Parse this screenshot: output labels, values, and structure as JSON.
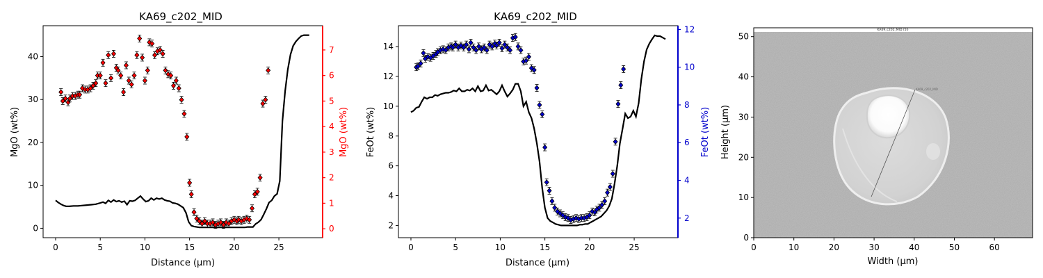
{
  "chart_data": [
    {
      "type": "line",
      "title": "KA69_c202_MID",
      "xlabel": "Distance (µm)",
      "ylabel": "MgO (wt%)",
      "ylabel_right": "MgO (wt%)",
      "xlim": [
        -1.4,
        29.9
      ],
      "ylim": [
        -2.2,
        47.2
      ],
      "ylim_right": [
        -0.35,
        7.95
      ],
      "xticks": [
        "0",
        "5",
        "10",
        "15",
        "20",
        "25"
      ],
      "yticks": [
        "0",
        "10",
        "20",
        "30",
        "40"
      ],
      "yticks_right": [
        "0",
        "1",
        "2",
        "3",
        "4",
        "5",
        "6",
        "7"
      ],
      "grid": false,
      "colors": {
        "line": "#000000",
        "points": "#ff0000",
        "right_axis": "#ff0000"
      },
      "series": [
        {
          "kind": "line",
          "x": [
            0,
            0.3,
            0.6,
            0.9,
            1.2,
            1.5,
            2.0,
            2.5,
            3.0,
            3.5,
            4.0,
            4.5,
            5.0,
            5.3,
            5.6,
            5.9,
            6.2,
            6.5,
            6.8,
            7.1,
            7.4,
            7.7,
            8.0,
            8.3,
            8.6,
            8.9,
            9.2,
            9.5,
            9.8,
            10.1,
            10.4,
            10.7,
            11.0,
            11.3,
            11.6,
            11.9,
            12.2,
            12.5,
            12.8,
            13.1,
            13.4,
            13.7,
            14.0,
            14.3,
            14.6,
            14.9,
            15.2,
            15.5,
            15.8,
            16.1,
            16.4,
            16.7,
            17.0,
            17.3,
            17.6,
            17.9,
            18.2,
            18.5,
            18.8,
            19.1,
            19.4,
            19.7,
            20.0,
            20.3,
            20.6,
            20.9,
            21.2,
            21.5,
            21.8,
            22.1,
            22.4,
            22.7,
            23.0,
            23.3,
            23.6,
            23.9,
            24.2,
            24.5,
            24.8,
            25.1,
            25.4,
            25.7,
            26.0,
            26.3,
            26.6,
            26.9,
            27.2,
            27.5,
            27.8,
            28.1,
            28.4
          ],
          "y": [
            6.5,
            6.0,
            5.6,
            5.3,
            5.1,
            5.1,
            5.2,
            5.2,
            5.3,
            5.4,
            5.5,
            5.6,
            5.9,
            6.1,
            5.8,
            6.5,
            6.1,
            6.6,
            6.2,
            6.4,
            6.1,
            6.3,
            5.5,
            6.4,
            6.3,
            6.5,
            7.0,
            7.5,
            6.8,
            6.2,
            6.4,
            7.0,
            6.6,
            7.0,
            6.8,
            7.0,
            6.6,
            6.4,
            6.3,
            5.9,
            5.8,
            5.6,
            5.2,
            4.8,
            3.6,
            1.5,
            0.6,
            0.4,
            0.3,
            0.2,
            0.2,
            0.2,
            0.2,
            0.2,
            0.2,
            0.2,
            0.2,
            0.2,
            0.2,
            0.2,
            0.2,
            0.2,
            0.2,
            0.2,
            0.2,
            0.2,
            0.2,
            0.3,
            0.3,
            0.3,
            1.0,
            1.4,
            2.0,
            3.2,
            4.5,
            6.0,
            6.5,
            7.5,
            8.0,
            11.0,
            25.0,
            32.0,
            37.0,
            40.5,
            42.5,
            43.5,
            44.2,
            44.8,
            45.0,
            45.0,
            45.0
          ]
        },
        {
          "kind": "points_right",
          "x": [
            0.6,
            0.8,
            1.1,
            1.4,
            1.6,
            1.9,
            2.2,
            2.5,
            2.7,
            3.0,
            3.3,
            3.6,
            3.9,
            4.2,
            4.5,
            4.7,
            5.0,
            5.3,
            5.6,
            5.9,
            6.2,
            6.5,
            6.8,
            7.0,
            7.3,
            7.6,
            7.9,
            8.2,
            8.5,
            8.8,
            9.1,
            9.4,
            9.7,
            10.0,
            10.3,
            10.5,
            10.8,
            11.1,
            11.4,
            11.7,
            12.0,
            12.3,
            12.6,
            12.9,
            13.2,
            13.5,
            13.8,
            14.1,
            14.4,
            14.7,
            15.0,
            15.2,
            15.5,
            15.8,
            16.1,
            16.4,
            16.7,
            17.0,
            17.3,
            17.6,
            17.9,
            18.2,
            18.5,
            18.8,
            19.1,
            19.4,
            19.7,
            20.0,
            20.3,
            20.5,
            20.8,
            21.1,
            21.4,
            21.7,
            22.0,
            22.3,
            22.6,
            22.9,
            23.2,
            23.5,
            23.8
          ],
          "y": [
            5.35,
            5.0,
            5.1,
            4.95,
            5.1,
            5.2,
            5.2,
            5.25,
            5.25,
            5.5,
            5.45,
            5.45,
            5.5,
            5.6,
            5.7,
            6.0,
            6.0,
            6.5,
            5.7,
            6.8,
            5.9,
            6.85,
            6.3,
            6.2,
            6.0,
            5.35,
            6.4,
            5.8,
            5.65,
            6.0,
            6.8,
            7.45,
            6.7,
            5.8,
            6.2,
            7.3,
            7.25,
            6.8,
            6.95,
            7.0,
            6.85,
            6.2,
            6.05,
            6.0,
            5.6,
            5.8,
            5.5,
            5.05,
            4.5,
            3.6,
            1.8,
            1.35,
            0.65,
            0.4,
            0.3,
            0.2,
            0.3,
            0.2,
            0.2,
            0.25,
            0.15,
            0.2,
            0.25,
            0.15,
            0.25,
            0.2,
            0.3,
            0.35,
            0.3,
            0.35,
            0.3,
            0.35,
            0.4,
            0.35,
            0.8,
            1.35,
            1.45,
            2.0,
            4.9,
            5.05,
            6.2
          ]
        }
      ]
    },
    {
      "type": "line",
      "title": "KA69_c202_MID",
      "xlabel": "Distance (µm)",
      "ylabel": "FeOt (wt%)",
      "ylabel_right": "FeOt (wt%)",
      "xlim": [
        -1.4,
        29.9
      ],
      "ylim": [
        1.18,
        15.4
      ],
      "ylim_right": [
        0.96,
        12.2
      ],
      "xticks": [
        "0",
        "5",
        "10",
        "15",
        "20",
        "25"
      ],
      "yticks": [
        "2",
        "4",
        "6",
        "8",
        "10",
        "12",
        "14"
      ],
      "yticks_right": [
        "2",
        "4",
        "6",
        "8",
        "10",
        "12"
      ],
      "grid": false,
      "colors": {
        "line": "#000000",
        "points": "#0000cc",
        "right_axis": "#0000cc"
      },
      "series": [
        {
          "kind": "line",
          "x": [
            0,
            0.3,
            0.6,
            0.9,
            1.2,
            1.5,
            1.8,
            2.1,
            2.4,
            2.7,
            3.0,
            3.3,
            3.6,
            3.9,
            4.2,
            4.5,
            4.8,
            5.1,
            5.4,
            5.7,
            6.0,
            6.3,
            6.6,
            6.9,
            7.2,
            7.5,
            7.8,
            8.1,
            8.4,
            8.7,
            9.0,
            9.3,
            9.6,
            9.9,
            10.2,
            10.5,
            10.8,
            11.1,
            11.4,
            11.7,
            12.0,
            12.3,
            12.6,
            12.9,
            13.2,
            13.5,
            13.8,
            14.1,
            14.4,
            14.7,
            15.0,
            15.3,
            15.6,
            15.9,
            16.2,
            16.5,
            16.8,
            17.1,
            17.4,
            17.7,
            18.0,
            18.3,
            18.6,
            18.9,
            19.2,
            19.5,
            19.8,
            20.1,
            20.4,
            20.7,
            21.0,
            21.3,
            21.6,
            21.9,
            22.2,
            22.5,
            22.8,
            23.1,
            23.4,
            23.7,
            24.0,
            24.3,
            24.6,
            24.9,
            25.2,
            25.5,
            25.8,
            26.1,
            26.4,
            26.7,
            27.0,
            27.3,
            27.6,
            27.9,
            28.2,
            28.5
          ],
          "y": [
            9.6,
            9.7,
            9.9,
            9.95,
            10.3,
            10.6,
            10.5,
            10.6,
            10.6,
            10.75,
            10.7,
            10.8,
            10.85,
            10.9,
            10.9,
            10.95,
            11.05,
            11.0,
            11.2,
            11.0,
            11.0,
            11.1,
            11.05,
            11.2,
            11.0,
            11.35,
            11.0,
            11.05,
            11.4,
            11.05,
            11.1,
            10.95,
            10.8,
            11.0,
            11.4,
            11.0,
            10.65,
            10.85,
            11.1,
            11.5,
            11.5,
            11.0,
            10.0,
            10.3,
            9.6,
            9.2,
            8.5,
            7.5,
            6.3,
            4.5,
            3.2,
            2.5,
            2.3,
            2.2,
            2.1,
            2.05,
            2.0,
            2.0,
            2.0,
            2.0,
            2.0,
            2.0,
            2.0,
            2.05,
            2.05,
            2.1,
            2.1,
            2.2,
            2.3,
            2.4,
            2.5,
            2.6,
            2.8,
            3.0,
            3.3,
            3.8,
            4.8,
            6.0,
            7.5,
            8.5,
            9.5,
            9.2,
            9.3,
            9.7,
            9.3,
            10.2,
            11.8,
            13.0,
            13.8,
            14.2,
            14.5,
            14.75,
            14.7,
            14.7,
            14.6,
            14.5
          ]
        },
        {
          "kind": "points_right",
          "x": [
            0.6,
            0.8,
            1.1,
            1.4,
            1.6,
            1.9,
            2.2,
            2.5,
            2.8,
            3.0,
            3.3,
            3.6,
            3.9,
            4.2,
            4.5,
            4.7,
            5.0,
            5.3,
            5.6,
            5.9,
            6.2,
            6.5,
            6.7,
            7.0,
            7.3,
            7.6,
            7.9,
            8.2,
            8.5,
            8.8,
            9.1,
            9.4,
            9.6,
            9.9,
            10.2,
            10.5,
            10.8,
            11.1,
            11.4,
            11.7,
            12.0,
            12.3,
            12.6,
            12.9,
            13.2,
            13.5,
            13.8,
            14.1,
            14.4,
            14.7,
            15.0,
            15.2,
            15.5,
            15.8,
            16.1,
            16.4,
            16.7,
            17.0,
            17.3,
            17.6,
            17.9,
            18.2,
            18.5,
            18.8,
            19.1,
            19.4,
            19.7,
            20.0,
            20.3,
            20.6,
            20.8,
            21.1,
            21.4,
            21.7,
            22.0,
            22.3,
            22.6,
            22.9,
            23.2,
            23.5,
            23.8
          ],
          "y": [
            10.0,
            10.05,
            10.2,
            10.75,
            10.45,
            10.55,
            10.5,
            10.6,
            10.7,
            10.8,
            10.9,
            10.95,
            10.9,
            11.05,
            11.1,
            11.05,
            11.2,
            11.05,
            11.15,
            11.05,
            11.2,
            10.95,
            11.3,
            11.05,
            10.9,
            11.1,
            10.95,
            11.05,
            10.9,
            11.2,
            11.1,
            11.25,
            11.15,
            11.3,
            11.0,
            11.2,
            11.05,
            10.9,
            11.55,
            11.6,
            11.1,
            10.9,
            10.3,
            10.35,
            10.55,
            9.95,
            9.85,
            8.9,
            8.0,
            7.5,
            5.75,
            3.9,
            3.45,
            2.9,
            2.55,
            2.35,
            2.25,
            2.15,
            2.05,
            2.0,
            1.9,
            1.95,
            2.0,
            1.95,
            2.0,
            2.0,
            2.05,
            2.15,
            2.35,
            2.3,
            2.45,
            2.55,
            2.7,
            2.9,
            3.35,
            3.65,
            4.35,
            6.05,
            8.05,
            9.05,
            9.9
          ]
        }
      ]
    },
    {
      "type": "image",
      "title": "",
      "xlabel": "Width (µm)",
      "ylabel": "Height (µm)",
      "xlim": [
        0,
        69.5
      ],
      "ylim": [
        0,
        52.2
      ],
      "xticks": [
        "0",
        "10",
        "20",
        "30",
        "40",
        "50",
        "60"
      ],
      "yticks": [
        "0",
        "10",
        "20",
        "30",
        "40",
        "50"
      ],
      "image_caption": "KA69_c202_MID (5l)",
      "transect_label": "KA69_c202_MID",
      "transect": {
        "from": [
          29.3,
          10.2
        ],
        "to": [
          40.2,
          36.8
        ]
      }
    }
  ]
}
